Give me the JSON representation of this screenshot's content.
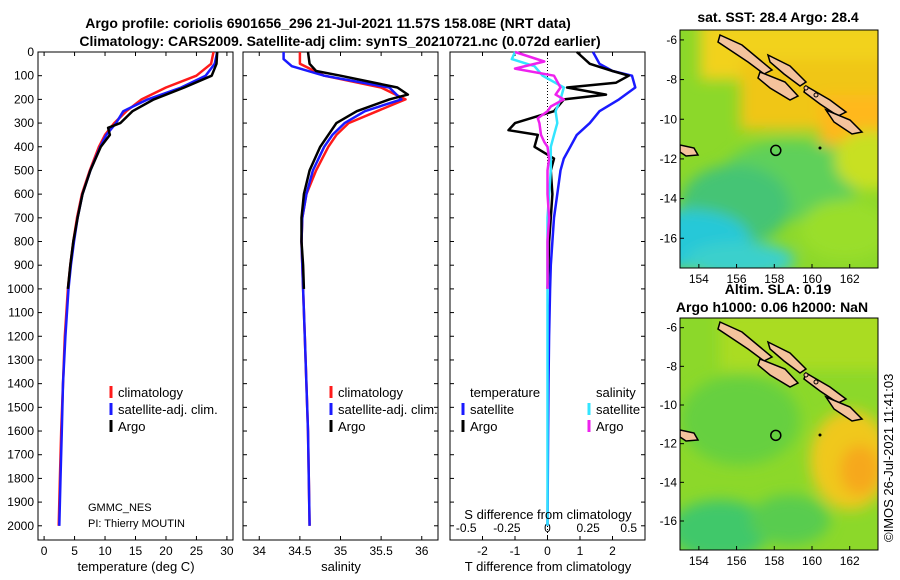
{
  "header": {
    "line1": "Argo profile: coriolis 6901656_296 21-Jul-2021 11.57S 158.08E (NRT data)",
    "line2": "Climatology: CARS2009. Satellite-adj clim: synTS_20210721.nc (0.072d earlier)"
  },
  "colors": {
    "climatology": "#ff1a1a",
    "satellite": "#1a1aff",
    "argo": "#000000",
    "sat_salinity": "#33e5ff",
    "argo_salinity": "#ee22ee",
    "land": "#f4c39c"
  },
  "attribution": {
    "institution": "GMMC_NES",
    "pi": "PI: Thierry MOUTIN",
    "stamp": "©IMOS 26-Jul-2021 11:41:03"
  },
  "chart_data": [
    {
      "id": "temperature",
      "type": "line",
      "xlabel": "temperature (deg C)",
      "ylabel": "",
      "xlim": [
        -1,
        31
      ],
      "ylim": [
        2060,
        0
      ],
      "xticks": [
        0,
        5,
        10,
        15,
        20,
        25,
        30
      ],
      "yticks": [
        0,
        100,
        200,
        300,
        400,
        500,
        600,
        700,
        800,
        900,
        1000,
        1100,
        1200,
        1300,
        1400,
        1500,
        1600,
        1700,
        1800,
        1900,
        2000
      ],
      "legend": [
        "climatology",
        "satellite-adj. clim.",
        "Argo"
      ],
      "legend_position": "lower-right",
      "series": [
        {
          "name": "climatology",
          "color": "#ff1a1a",
          "depth": [
            0,
            50,
            100,
            150,
            200,
            250,
            300,
            350,
            400,
            500,
            600,
            700,
            800,
            900,
            1000,
            1200,
            1400,
            1600,
            1800,
            2000
          ],
          "values": [
            27.8,
            27.4,
            25,
            20,
            16,
            13.5,
            11.5,
            10,
            9,
            7.5,
            6.2,
            5.4,
            4.8,
            4.3,
            3.9,
            3.4,
            3.1,
            2.8,
            2.6,
            2.4
          ]
        },
        {
          "name": "satellite-adj. clim.",
          "color": "#1a1aff",
          "depth": [
            0,
            50,
            100,
            150,
            200,
            250,
            300,
            350,
            400,
            500,
            600,
            700,
            800,
            900,
            1000,
            1200,
            1400,
            1600,
            1800,
            2000
          ],
          "values": [
            28.4,
            28.0,
            26.5,
            22.5,
            17,
            13,
            11.8,
            10.2,
            9.2,
            7.6,
            6.3,
            5.5,
            4.9,
            4.4,
            4.0,
            3.5,
            3.1,
            2.9,
            2.7,
            2.5
          ]
        },
        {
          "name": "Argo",
          "color": "#000000",
          "depth": [
            0,
            50,
            100,
            150,
            200,
            250,
            300,
            320,
            350,
            400,
            500,
            600,
            700,
            800,
            900,
            1000
          ],
          "values": [
            28.4,
            28.3,
            27.5,
            23,
            18,
            14.5,
            12.5,
            10.5,
            10.8,
            9.3,
            7.6,
            6.3,
            5.5,
            4.8,
            4.3,
            3.9
          ]
        }
      ]
    },
    {
      "id": "salinity",
      "type": "line",
      "xlabel": "salinity",
      "xlim": [
        33.8,
        36.2
      ],
      "ylim": [
        2060,
        0
      ],
      "xticks": [
        34,
        34.5,
        35,
        35.5,
        36
      ],
      "tick_labels": [
        "34",
        "34.5",
        "35",
        "35.5",
        "36"
      ],
      "legend": [
        "climatology",
        "satellite-adj. clim.",
        "Argo"
      ],
      "legend_position": "lower-right",
      "series": [
        {
          "name": "climatology",
          "color": "#ff1a1a",
          "depth": [
            0,
            50,
            100,
            150,
            200,
            250,
            300,
            350,
            400,
            500,
            600,
            700,
            800,
            900,
            1000,
            1200,
            1400,
            1600,
            1800,
            2000
          ],
          "values": [
            34.5,
            34.5,
            34.8,
            35.5,
            35.8,
            35.45,
            35.1,
            34.95,
            34.85,
            34.7,
            34.58,
            34.53,
            34.52,
            34.53,
            34.54,
            34.56,
            34.58,
            34.6,
            34.61,
            34.62
          ]
        },
        {
          "name": "satellite-adj. clim.",
          "color": "#1a1aff",
          "depth": [
            0,
            30,
            60,
            100,
            150,
            200,
            250,
            300,
            350,
            400,
            500,
            600,
            700,
            800,
            900,
            1000,
            1200,
            1400,
            1600,
            1800,
            2000
          ],
          "values": [
            34.3,
            34.3,
            34.4,
            34.8,
            35.6,
            35.75,
            35.3,
            35.05,
            34.9,
            34.8,
            34.66,
            34.58,
            34.53,
            34.52,
            34.53,
            34.54,
            34.56,
            34.58,
            34.6,
            34.61,
            34.62
          ]
        },
        {
          "name": "Argo",
          "color": "#000000",
          "depth": [
            0,
            50,
            80,
            100,
            150,
            180,
            200,
            250,
            300,
            350,
            400,
            500,
            600,
            700,
            800,
            900,
            1000
          ],
          "values": [
            34.6,
            34.62,
            34.7,
            35.0,
            35.7,
            35.83,
            35.6,
            35.2,
            34.95,
            34.85,
            34.75,
            34.62,
            34.55,
            34.52,
            34.52,
            34.54,
            34.55
          ]
        }
      ]
    },
    {
      "id": "difference",
      "type": "line",
      "xlabel": "T difference from climatology",
      "x2label": "S difference from climatology",
      "xlim": [
        -3,
        3
      ],
      "ylim": [
        2060,
        0
      ],
      "xticks": [
        -2,
        -1,
        0,
        1,
        2
      ],
      "x2ticks": [
        -0.5,
        -0.25,
        0,
        0.25,
        0.5
      ],
      "x2tick_labels": [
        "-0.5",
        "-0.25",
        "0",
        "0.25",
        "0.5"
      ],
      "legend_titles": [
        "temperature",
        "salinity"
      ],
      "legend": [
        "satellite",
        "Argo",
        "satellite",
        "Argo"
      ],
      "series": [
        {
          "name": "T satellite",
          "color": "#1a1aff",
          "depth": [
            0,
            50,
            80,
            100,
            150,
            200,
            250,
            300,
            350,
            400,
            450,
            500,
            600,
            700,
            800,
            900,
            1000,
            1200,
            1400,
            1600,
            1800,
            2000
          ],
          "values": [
            1.4,
            1.6,
            2.0,
            2.6,
            2.7,
            2.2,
            1.6,
            1.3,
            0.9,
            0.7,
            0.5,
            0.4,
            0.3,
            0.2,
            0.15,
            0.1,
            0.08,
            0.05,
            0.03,
            0.02,
            0.01,
            0.0
          ]
        },
        {
          "name": "T Argo",
          "color": "#000000",
          "depth": [
            0,
            50,
            80,
            100,
            130,
            150,
            180,
            200,
            250,
            300,
            330,
            350,
            400,
            450,
            500,
            600,
            700,
            800,
            900,
            1000
          ],
          "values": [
            0.9,
            1.3,
            2.0,
            2.5,
            2.1,
            0.6,
            1.8,
            0.5,
            0.2,
            -1.0,
            -1.2,
            -0.3,
            -0.4,
            0.2,
            0.1,
            0.15,
            0.1,
            0.05,
            0.03,
            0.0
          ]
        },
        {
          "name": "S satellite",
          "color": "#33e5ff",
          "depth": [
            0,
            30,
            60,
            100,
            150,
            200,
            250,
            300,
            350,
            400,
            500,
            600,
            700,
            800,
            900,
            1000,
            1200,
            1400,
            1600,
            1800,
            2000
          ],
          "values": [
            -0.2,
            -0.22,
            -0.08,
            -0.03,
            0.1,
            0.08,
            0.05,
            0.06,
            0.04,
            0.02,
            0.02,
            0.01,
            0.0,
            0.0,
            0.0,
            0.0,
            0.0,
            0.0,
            0.0,
            0.0,
            0.0
          ]
        },
        {
          "name": "S Argo",
          "color": "#ee22ee",
          "depth": [
            0,
            40,
            70,
            100,
            150,
            180,
            200,
            230,
            250,
            280,
            300,
            350,
            380,
            400,
            450,
            500,
            600,
            700,
            800,
            900,
            1000
          ],
          "values": [
            -0.2,
            -0.02,
            -0.2,
            0.04,
            0.08,
            0.05,
            0.1,
            0.02,
            0.0,
            -0.06,
            -0.05,
            -0.04,
            -0.02,
            0.0,
            0.01,
            0.0,
            0.0,
            0.01,
            0.0,
            0.0,
            0.0
          ]
        }
      ]
    },
    {
      "id": "sst-map",
      "type": "heatmap",
      "title": "sat. SST: 28.4 Argo: 28.4",
      "xlim": [
        153,
        163.5
      ],
      "ylim": [
        -17.5,
        -5.5
      ],
      "xticks": [
        154,
        156,
        158,
        160,
        162
      ],
      "yticks": [
        -6,
        -8,
        -10,
        -12,
        -14,
        -16
      ],
      "profile_marker": {
        "lon": 158.08,
        "lat": -11.57
      }
    },
    {
      "id": "sla-map",
      "type": "heatmap",
      "title": "Altim. SLA: 0.19",
      "subtitle": "Argo h1000: 0.06 h2000: NaN",
      "xlim": [
        153,
        163.5
      ],
      "ylim": [
        -17.5,
        -5.5
      ],
      "xticks": [
        154,
        156,
        158,
        160,
        162
      ],
      "yticks": [
        -6,
        -8,
        -10,
        -12,
        -14,
        -16
      ],
      "profile_marker": {
        "lon": 158.08,
        "lat": -11.57
      }
    }
  ]
}
